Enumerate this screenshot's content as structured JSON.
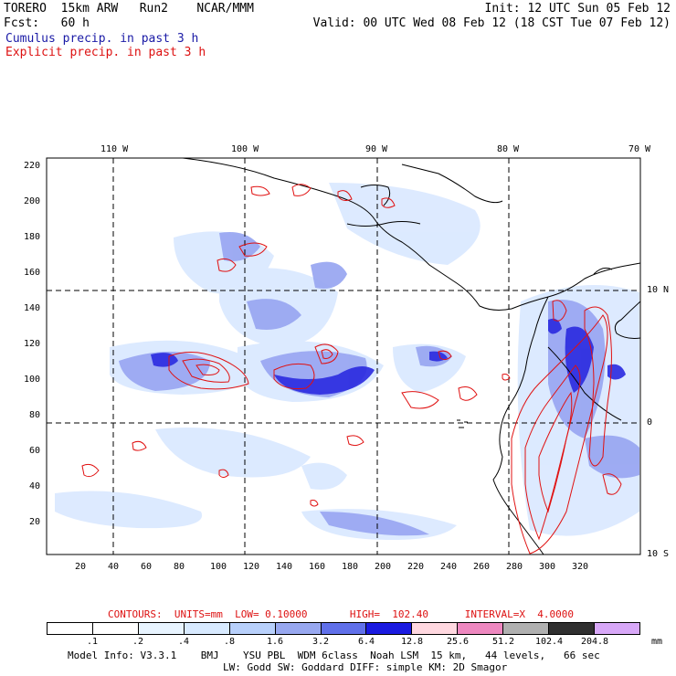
{
  "header": {
    "line1_left": "TORERO  15km ARW   Run2    NCAR/MMM",
    "line1_right": "Init: 12 UTC Sun 05 Feb 12",
    "line2_left": "Fcst:   60 h",
    "line2_right": "Valid: 00 UTC Wed 08 Feb 12 (18 CST Tue 07 Feb 12)",
    "line3": "Cumulus precip. in past 3 h",
    "line4": "Explicit precip. in past 3 h"
  },
  "map": {
    "top_lon_labels": [
      "110 W",
      "100 W",
      "90 W",
      "80 W",
      "70 W"
    ],
    "right_lat_labels": [
      "10 N",
      "0",
      "10 S"
    ],
    "left_y_ticks": [
      "220",
      "200",
      "180",
      "160",
      "140",
      "120",
      "100",
      "80",
      "60",
      "40",
      "20"
    ],
    "bottom_x_ticks": [
      "20",
      "40",
      "60",
      "80",
      "100",
      "120",
      "140",
      "160",
      "180",
      "200",
      "220",
      "240",
      "260",
      "280",
      "300",
      "320"
    ]
  },
  "contours_caption": {
    "text": "CONTOURS:  UNITS=mm  LOW= 0.10000       HIGH=  102.40      INTERVAL=X  4.0000"
  },
  "color_scale": {
    "labels": [
      ".1",
      ".2",
      ".4",
      ".8",
      "1.6",
      "3.2",
      "6.4",
      "12.8",
      "25.6",
      "51.2",
      "102.4",
      "204.8"
    ],
    "unit": "mm",
    "colors": [
      "#ffffff",
      "#ffffff",
      "#e8f4ff",
      "#d8eaff",
      "#b8d0fb",
      "#98a8f0",
      "#6070ea",
      "#1a1ae0",
      "#ffd8e0",
      "#ee88c0",
      "#b0b0b0",
      "#303030",
      "#d8a8f8"
    ]
  },
  "footer": {
    "line1": "Model Info: V3.3.1    BMJ    YSU PBL  WDM 6class  Noah LSM  15 km,   44 levels,   66 sec",
    "line2": "LW: Godd SW: Goddard DIFF: simple KM: 2D Smagor"
  }
}
